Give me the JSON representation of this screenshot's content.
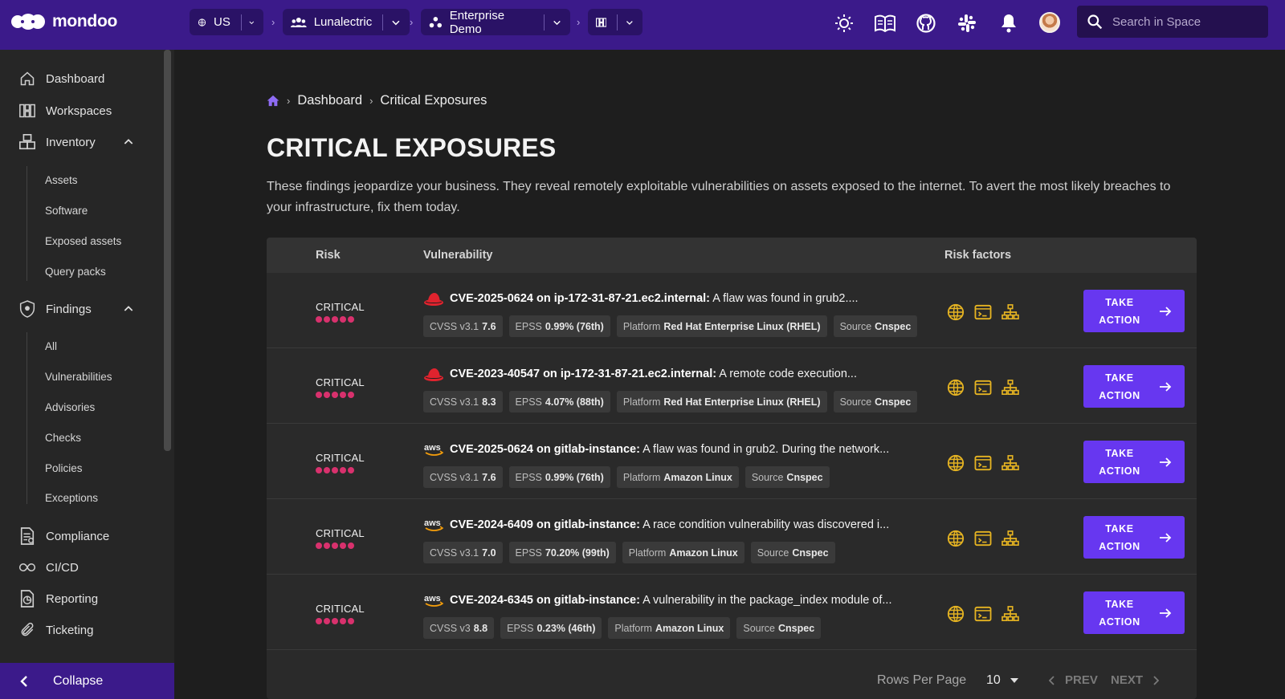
{
  "app": {
    "name": "mondoo"
  },
  "scope": {
    "region": "US",
    "organization": "Lunalectric",
    "space": "Enterprise Demo"
  },
  "search": {
    "placeholder": "Search in Space"
  },
  "sidebar": {
    "items": [
      {
        "label": "Dashboard",
        "icon": "home-icon"
      },
      {
        "label": "Workspaces",
        "icon": "workspaces-icon"
      },
      {
        "label": "Inventory",
        "icon": "inventory-icon",
        "expanded": true,
        "children": [
          "Assets",
          "Software",
          "Exposed assets",
          "Query packs"
        ]
      },
      {
        "label": "Findings",
        "icon": "shield-icon",
        "expanded": true,
        "children": [
          "All",
          "Vulnerabilities",
          "Advisories",
          "Checks",
          "Policies",
          "Exceptions"
        ]
      },
      {
        "label": "Compliance",
        "icon": "compliance-icon"
      },
      {
        "label": "CI/CD",
        "icon": "infinity-icon"
      },
      {
        "label": "Reporting",
        "icon": "reporting-icon"
      },
      {
        "label": "Ticketing",
        "icon": "paperclip-icon"
      }
    ],
    "collapse_label": "Collapse"
  },
  "breadcrumb": {
    "root": "Dashboard",
    "current": "Critical Exposures"
  },
  "page": {
    "title": "CRITICAL EXPOSURES",
    "description": "These findings jeopardize your business. They reveal remotely exploitable vulnerabilities on assets exposed to the internet. To avert the most likely breaches to your infrastructure, fix them today."
  },
  "table": {
    "headers": {
      "risk": "Risk",
      "vulnerability": "Vulnerability",
      "risk_factors": "Risk factors"
    },
    "action_label_1": "TAKE",
    "action_label_2": "ACTION",
    "rows": [
      {
        "risk": "CRITICAL",
        "os": "redhat",
        "title": "CVE-2025-0624 on ip-172-31-87-21.ec2.internal:",
        "desc": "A flaw was found in grub2....",
        "cvss_label": "CVSS v3.1",
        "cvss": "7.6",
        "epss_label": "EPSS",
        "epss": "0.99% (76th)",
        "platform_label": "Platform",
        "platform": "Red Hat Enterprise Linux (RHEL)",
        "source_label": "Source",
        "source": "Cnspec"
      },
      {
        "risk": "CRITICAL",
        "os": "redhat",
        "title": "CVE-2023-40547 on ip-172-31-87-21.ec2.internal:",
        "desc": "A remote code execution...",
        "cvss_label": "CVSS v3.1",
        "cvss": "8.3",
        "epss_label": "EPSS",
        "epss": "4.07% (88th)",
        "platform_label": "Platform",
        "platform": "Red Hat Enterprise Linux (RHEL)",
        "source_label": "Source",
        "source": "Cnspec"
      },
      {
        "risk": "CRITICAL",
        "os": "aws",
        "title": "CVE-2025-0624 on gitlab-instance:",
        "desc": "A flaw was found in grub2. During the network...",
        "cvss_label": "CVSS v3.1",
        "cvss": "7.6",
        "epss_label": "EPSS",
        "epss": "0.99% (76th)",
        "platform_label": "Platform",
        "platform": "Amazon Linux",
        "source_label": "Source",
        "source": "Cnspec"
      },
      {
        "risk": "CRITICAL",
        "os": "aws",
        "title": "CVE-2024-6409 on gitlab-instance:",
        "desc": "A race condition vulnerability was discovered i...",
        "cvss_label": "CVSS v3.1",
        "cvss": "7.0",
        "epss_label": "EPSS",
        "epss": "70.20% (99th)",
        "platform_label": "Platform",
        "platform": "Amazon Linux",
        "source_label": "Source",
        "source": "Cnspec"
      },
      {
        "risk": "CRITICAL",
        "os": "aws",
        "title": "CVE-2024-6345 on gitlab-instance:",
        "desc": "A vulnerability in the package_index module of...",
        "cvss_label": "CVSS v3",
        "cvss": "8.8",
        "epss_label": "EPSS",
        "epss": "0.23% (46th)",
        "platform_label": "Platform",
        "platform": "Amazon Linux",
        "source_label": "Source",
        "source": "Cnspec"
      }
    ]
  },
  "pagination": {
    "rows_per_page_label": "Rows Per Page",
    "rows_per_page": "10",
    "prev_label": "PREV",
    "next_label": "NEXT"
  },
  "colors": {
    "topbar": "#3b1a8a",
    "accent": "#6737f0",
    "critical": "#d8316d",
    "risk_factor": "#e6b422"
  }
}
